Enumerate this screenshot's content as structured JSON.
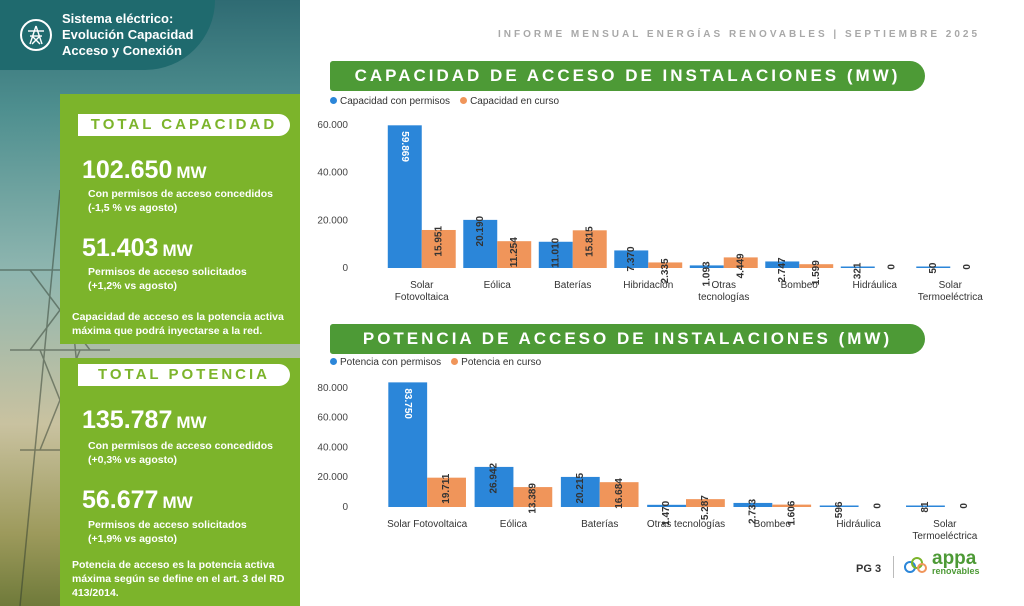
{
  "header": {
    "line1": "Sistema eléctrico:",
    "line2": "Evolución Capacidad",
    "line3": "Acceso y Conexión",
    "report": "INFORME MENSUAL ENERGÍAS RENOVABLES  |  SEPTIEMBRE 2025"
  },
  "capacidad": {
    "pill": "TOTAL CAPACIDAD",
    "value1": "102.650",
    "unit": "MW",
    "desc1a": "Con permisos de acceso concedidos",
    "desc1b": "(-1,5 % vs agosto)",
    "value2": "51.403",
    "desc2a": "Permisos de acceso solicitados",
    "desc2b": "(+1,2% vs agosto)",
    "foot": "Capacidad de acceso es la potencia activa máxima que podrá inyectarse a la red."
  },
  "potencia": {
    "pill": "TOTAL POTENCIA",
    "value1": "135.787",
    "unit": "MW",
    "desc1a": "Con permisos de acceso concedidos",
    "desc1b": "(+0,3% vs agosto)",
    "value2": "56.677",
    "desc2a": "Permisos de acceso solicitados",
    "desc2b": "(+1,9% vs agosto)",
    "foot": "Potencia de acceso es la potencia activa máxima según se define en el art. 3 del RD 413/2014."
  },
  "footer": {
    "page": "PG 3",
    "logo_main": "appa",
    "logo_sub": "renovables"
  },
  "colors": {
    "blue": "#2b86d9",
    "orange": "#f0955a",
    "green": "#7cb42b",
    "dark_green": "#4d9a36"
  },
  "chart_data": [
    {
      "type": "bar",
      "title": "CAPACIDAD DE ACCESO DE INSTALACIONES (MW)",
      "categories": [
        "Solar Fotovoltaica",
        "Eólica",
        "Baterías",
        "Hibridación",
        "Otras tecnologías",
        "Bombeo",
        "Hidráulica",
        "Solar Termoeléctrica"
      ],
      "category_lines": [
        [
          "Solar",
          "Fotovoltaica"
        ],
        [
          "Eólica"
        ],
        [
          "Baterías"
        ],
        [
          "Hibridación"
        ],
        [
          "Otras",
          "tecnologías"
        ],
        [
          "Bombeo"
        ],
        [
          "Hidráulica"
        ],
        [
          "Solar",
          "Termoeléctrica"
        ]
      ],
      "series": [
        {
          "name": "Capacidad con permisos",
          "values": [
            59869,
            20190,
            11010,
            7370,
            1093,
            2747,
            321,
            50
          ],
          "labels": [
            "59.869",
            "20.190",
            "11.010",
            "7.370",
            "1.093",
            "2.747",
            "321",
            "50"
          ]
        },
        {
          "name": "Capacidad en curso",
          "values": [
            15951,
            11254,
            15815,
            2335,
            4449,
            1599,
            0,
            0
          ],
          "labels": [
            "15.951",
            "11.254",
            "15.815",
            "2.335",
            "4.449",
            "1.599",
            "0",
            "0"
          ]
        }
      ],
      "yticks": [
        0,
        20000,
        40000,
        60000
      ],
      "ytick_labels": [
        "0",
        "20.000",
        "40.000",
        "60.000"
      ],
      "ylim": [
        0,
        60000
      ]
    },
    {
      "type": "bar",
      "title": "POTENCIA DE ACCESO DE INSTALACIONES (MW)",
      "categories": [
        "Solar Fotovoltaica",
        "Eólica",
        "Baterías",
        "Otras tecnologías",
        "Bombeo",
        "Hidráulica",
        "Solar Termoeléctrica"
      ],
      "category_lines": [
        [
          "Solar Fotovoltaica"
        ],
        [
          "Eólica"
        ],
        [
          "Baterías"
        ],
        [
          "Otras tecnologías"
        ],
        [
          "Bombeo"
        ],
        [
          "Hidráulica"
        ],
        [
          "Solar",
          "Termoeléctrica"
        ]
      ],
      "series": [
        {
          "name": "Potencia con permisos",
          "values": [
            83750,
            26942,
            20215,
            1470,
            2733,
            596,
            81
          ],
          "labels": [
            "83.750",
            "26.942",
            "20.215",
            "1.470",
            "2.733",
            "596",
            "81"
          ]
        },
        {
          "name": "Potencia en curso",
          "values": [
            19711,
            13389,
            16684,
            5287,
            1606,
            0,
            0
          ],
          "labels": [
            "19.711",
            "13.389",
            "16.684",
            "5.287",
            "1.606",
            "0",
            "0"
          ]
        }
      ],
      "yticks": [
        0,
        20000,
        40000,
        60000,
        80000
      ],
      "ytick_labels": [
        "0",
        "20.000",
        "40.000",
        "60.000",
        "80.000"
      ],
      "ylim": [
        0,
        84000
      ]
    }
  ]
}
